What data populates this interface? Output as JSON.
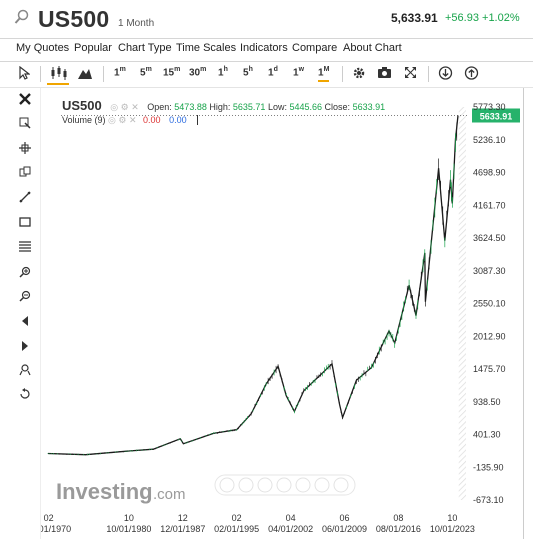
{
  "header": {
    "symbol": "US500",
    "period": "1 Month",
    "price": "5,633.91",
    "change": "+56.93",
    "change_pct": "+1.02%"
  },
  "menu": [
    "My Quotes",
    "Popular",
    "Chart Type",
    "Time Scales",
    "Indicators",
    "Compare",
    "About Chart"
  ],
  "toolbar": {
    "timeframes": [
      {
        "label": "1",
        "sup": "m"
      },
      {
        "label": "5",
        "sup": "m"
      },
      {
        "label": "15",
        "sup": "m"
      },
      {
        "label": "30",
        "sup": "m"
      },
      {
        "label": "1",
        "sup": "h"
      },
      {
        "label": "5",
        "sup": "h"
      },
      {
        "label": "1",
        "sup": "d"
      },
      {
        "label": "1",
        "sup": "w"
      },
      {
        "label": "1",
        "sup": "M"
      }
    ],
    "active_timeframe": "1M"
  },
  "legend": {
    "symbol": "US500",
    "open_label": "Open:",
    "open": "5473.88",
    "high_label": "High:",
    "high": "5635.71",
    "low_label": "Low:",
    "low": "5445.66",
    "close_label": "Close:",
    "close": "5633.91",
    "volume_label": "Volume (9)",
    "volume_val1": "0.00",
    "volume_val2": "0.00"
  },
  "watermark": {
    "brand": "Investing",
    "suffix": ".com"
  },
  "colors": {
    "up": "#17a34a",
    "down": "#d33",
    "price_tag": "#26b26b",
    "accent": "#f0a500"
  },
  "chart_data": {
    "type": "line",
    "title": "",
    "price_tag": "5633.91",
    "y_ticks": [
      "5773.30",
      "5236.10",
      "4698.90",
      "4161.70",
      "3624.50",
      "3087.30",
      "2550.10",
      "2012.90",
      "1475.70",
      "938.50",
      "401.30",
      "-135.90",
      "-673.10"
    ],
    "x_ticks_top": [
      "02",
      "10",
      "12",
      "02",
      "04",
      "06",
      "08",
      "10"
    ],
    "x_ticks_bottom": [
      "02/01/1970",
      "10/01/1980",
      "12/01/1987",
      "02/01/1995",
      "04/01/2002",
      "06/01/2009",
      "08/01/2016",
      "10/01/2023"
    ],
    "ylim": [
      -673.1,
      5773.3
    ],
    "x": [
      "1970-01",
      "1975-01",
      "1980-10",
      "1984-01",
      "1987-08",
      "1988-01",
      "1992-01",
      "1995-02",
      "1997-01",
      "1999-01",
      "2000-08",
      "2001-09",
      "2002-10",
      "2004-01",
      "2007-10",
      "2008-10",
      "2009-03",
      "2011-01",
      "2013-01",
      "2015-05",
      "2016-02",
      "2018-01",
      "2018-12",
      "2020-02",
      "2020-03",
      "2021-12",
      "2022-10",
      "2023-07",
      "2023-10",
      "2024-03",
      "2024-07"
    ],
    "values": [
      90,
      70,
      130,
      160,
      330,
      250,
      420,
      480,
      740,
      1230,
      1520,
      1040,
      780,
      1120,
      1560,
      900,
      680,
      1290,
      1500,
      2100,
      1900,
      2850,
      2350,
      3380,
      2580,
      4770,
      3580,
      4580,
      4190,
      5250,
      5633.91
    ]
  }
}
